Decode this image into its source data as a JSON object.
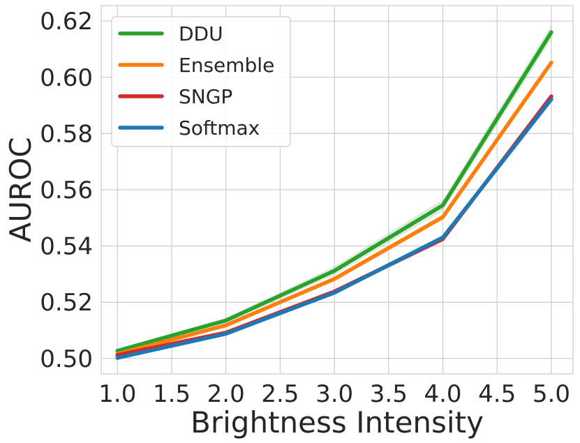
{
  "chart_data": {
    "type": "line",
    "title": "",
    "xlabel": "Brightness Intensity",
    "ylabel": "AUROC",
    "x": [
      1.0,
      2.0,
      3.0,
      4.0,
      5.0
    ],
    "xticks": [
      "1.0",
      "1.5",
      "2.0",
      "2.5",
      "3.0",
      "3.5",
      "4.0",
      "4.5",
      "5.0"
    ],
    "yticks": [
      "0.50",
      "0.52",
      "0.54",
      "0.56",
      "0.58",
      "0.60",
      "0.62"
    ],
    "xlim": [
      0.85,
      5.2
    ],
    "ylim": [
      0.4945,
      0.6255
    ],
    "grid": true,
    "legend_position": "top-left",
    "series": [
      {
        "name": "DDU",
        "color": "#2ca02c",
        "values": [
          0.5027,
          0.5135,
          0.5312,
          0.5545,
          0.616
        ],
        "band": [
          0.0008,
          0.001,
          0.0015,
          0.002,
          0.0025
        ]
      },
      {
        "name": "Ensemble",
        "color": "#ff7f0e",
        "values": [
          0.5016,
          0.5118,
          0.5283,
          0.5503,
          0.6052
        ],
        "band": [
          0.0005,
          0.0006,
          0.0008,
          0.001,
          0.001
        ]
      },
      {
        "name": "SNGP",
        "color": "#d62728",
        "values": [
          0.5012,
          0.5092,
          0.5238,
          0.5425,
          0.5932
        ],
        "band": [
          0.0006,
          0.0007,
          0.0008,
          0.001,
          0.0012
        ]
      },
      {
        "name": "Softmax",
        "color": "#1f77b4",
        "values": [
          0.5002,
          0.5088,
          0.5234,
          0.543,
          0.5922
        ],
        "band": [
          0.0005,
          0.0006,
          0.0008,
          0.001,
          0.0012
        ]
      }
    ]
  }
}
